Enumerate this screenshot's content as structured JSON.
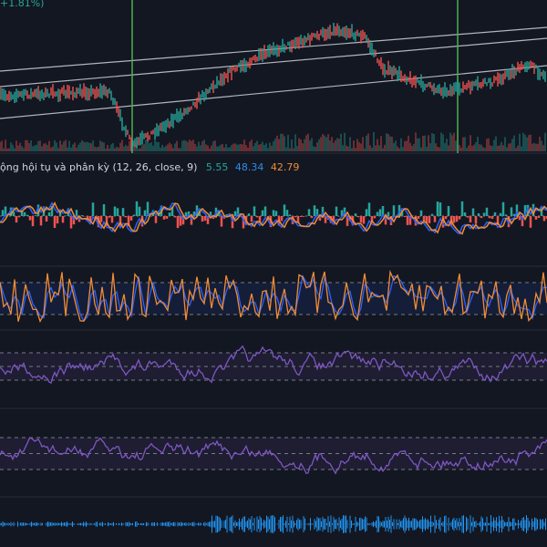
{
  "header": {
    "change": "+1.81%)"
  },
  "macd_legend": {
    "title": "ộng hội tụ và phân kỳ (12, 26, close, 9)",
    "values": [
      "5.55",
      "48.34",
      "42.79"
    ]
  }
}
